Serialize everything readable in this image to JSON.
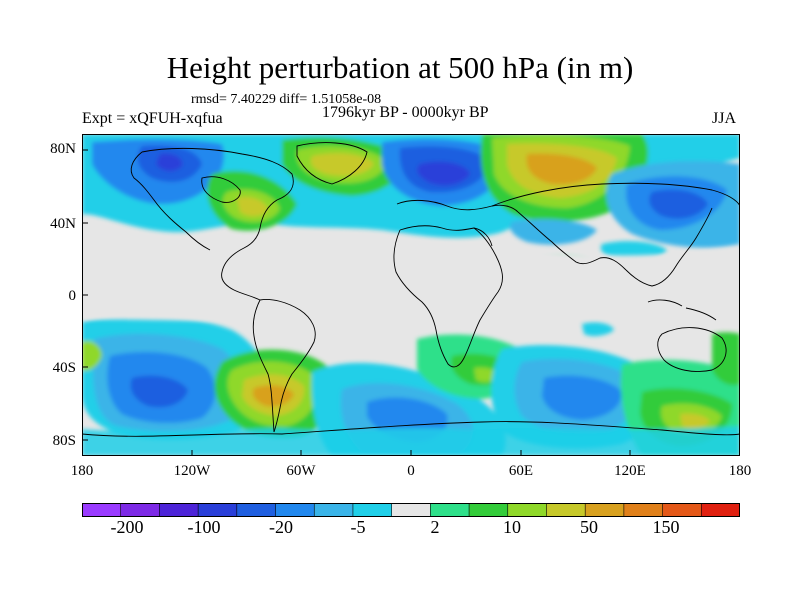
{
  "title": "Height perturbation at 500 hPa (in m)",
  "stats": "rmsd= 7.40229 diff= 1.51058e-08",
  "period": "1796kyr BP - 0000kyr BP",
  "experiment": "Expt = xQFUH-xqfua",
  "season": "JJA",
  "lat_labels": [
    "80N",
    "40N",
    "0",
    "40S",
    "80S"
  ],
  "lon_labels": [
    "180",
    "120W",
    "60W",
    "0",
    "60E",
    "120E",
    "180"
  ],
  "colorbar": {
    "colors": [
      "#9a3bff",
      "#7d2ae6",
      "#4d24d8",
      "#2a3fd9",
      "#1f5fe0",
      "#2288ee",
      "#3ab4e8",
      "#20cfe8",
      "#e6e6e6",
      "#2ee08a",
      "#33cc3a",
      "#8fd829",
      "#c7c92a",
      "#d8a11f",
      "#e0801a",
      "#e45818",
      "#e02010"
    ],
    "labels": [
      "-200",
      "-100",
      "-20",
      "-5",
      "2",
      "10",
      "50",
      "150"
    ]
  }
}
